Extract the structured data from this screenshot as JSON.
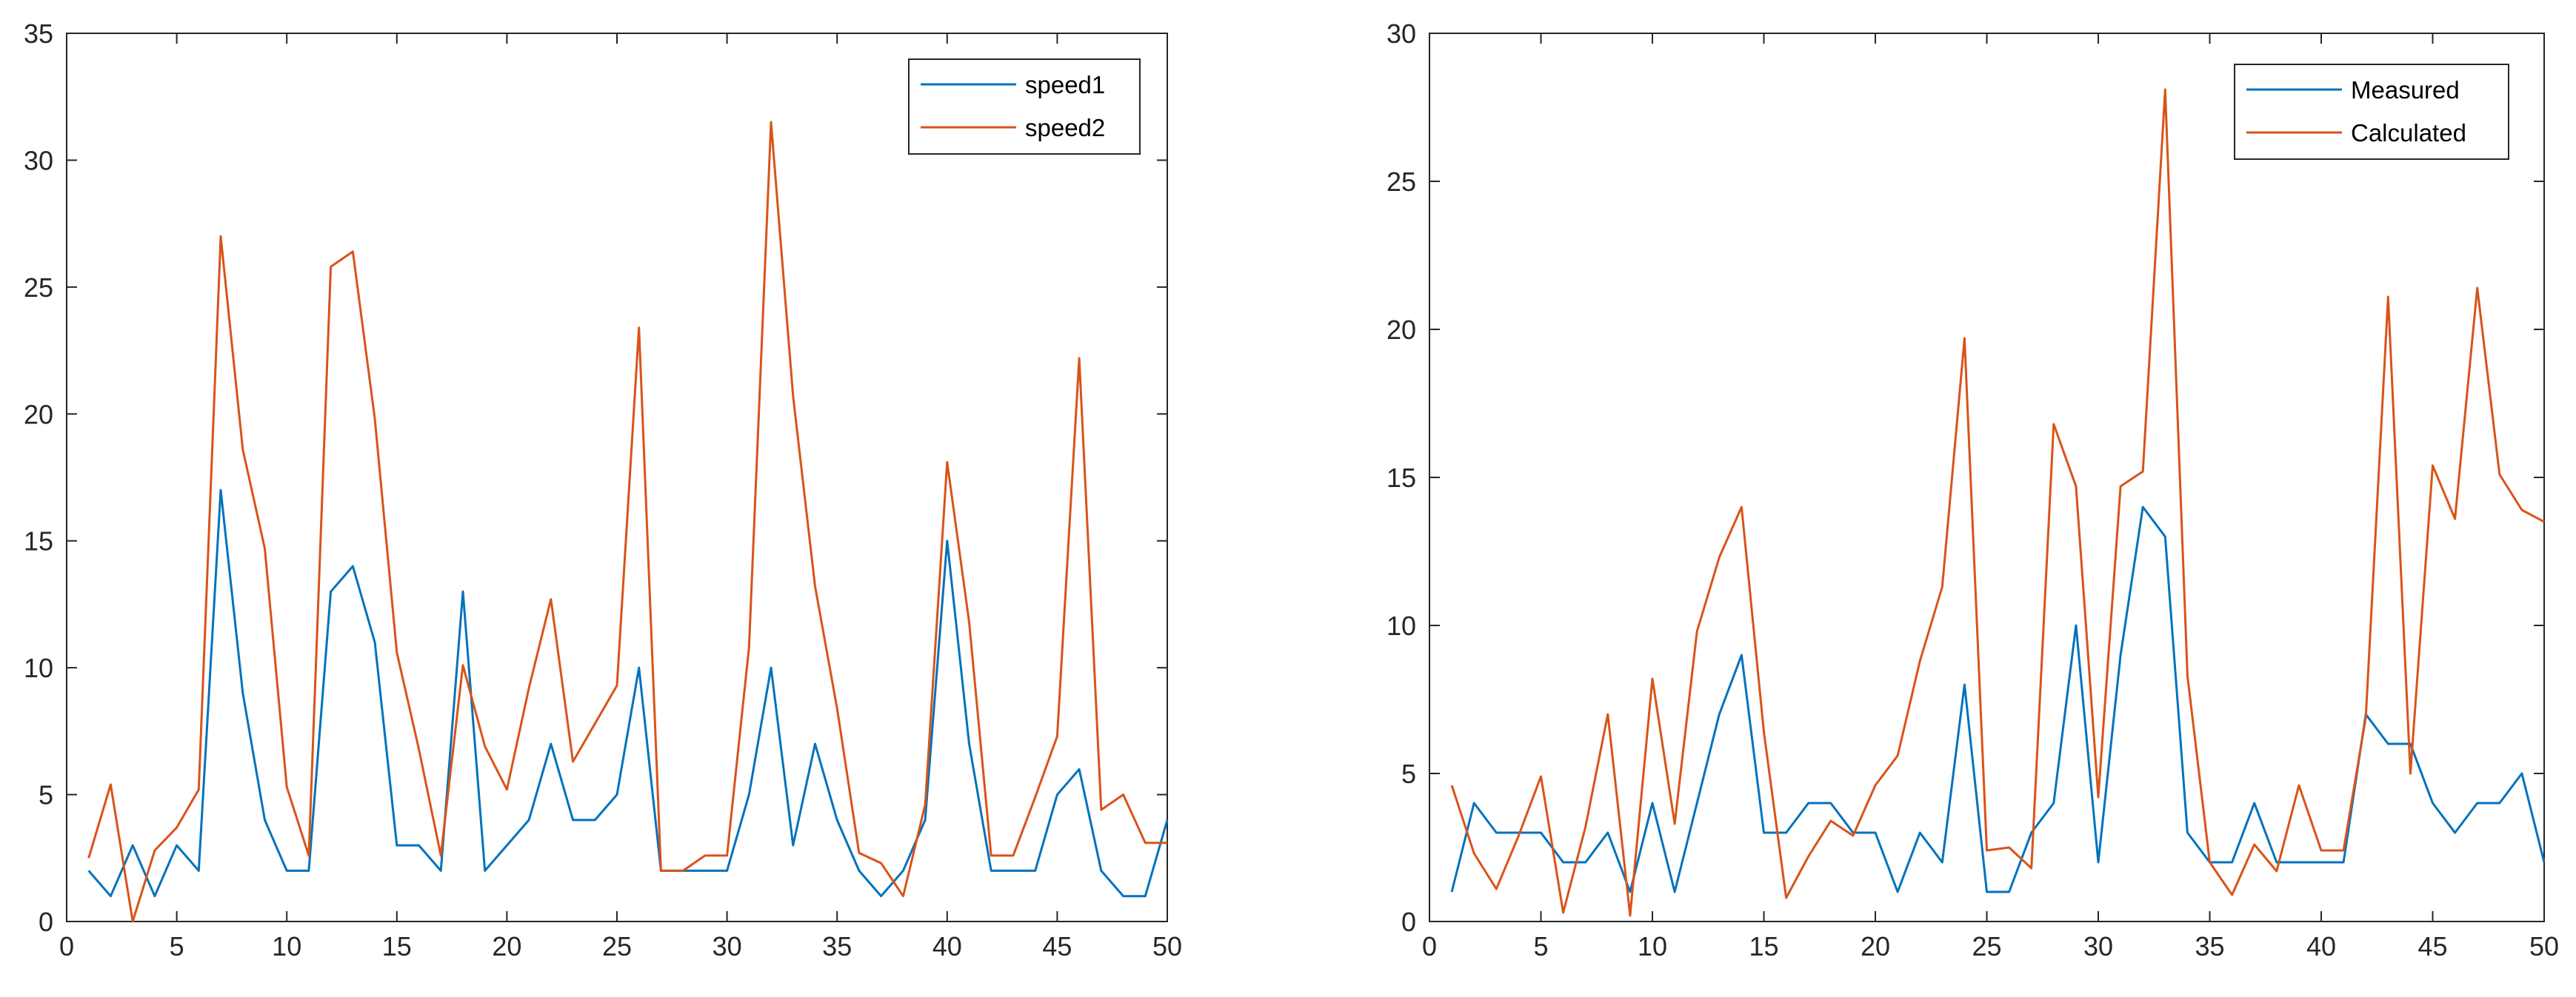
{
  "chart_data": [
    {
      "type": "line",
      "xlim": [
        0,
        50
      ],
      "ylim": [
        0,
        35
      ],
      "xticks": [
        "0",
        "5",
        "10",
        "15",
        "20",
        "25",
        "30",
        "35",
        "40",
        "45",
        "50"
      ],
      "yticks": [
        "0",
        "5",
        "10",
        "15",
        "20",
        "25",
        "30",
        "35"
      ],
      "grid": false,
      "legend_position": "top-right",
      "x": [
        1,
        2,
        3,
        4,
        5,
        6,
        7,
        8,
        9,
        10,
        11,
        12,
        13,
        14,
        15,
        16,
        17,
        18,
        19,
        20,
        21,
        22,
        23,
        24,
        25,
        26,
        27,
        28,
        29,
        30,
        31,
        32,
        33,
        34,
        35,
        36,
        37,
        38,
        39,
        40,
        41,
        42,
        43,
        44,
        45,
        46,
        47,
        48,
        49,
        50
      ],
      "series": [
        {
          "name": "speed1",
          "color": "#0072BD",
          "values": [
            2,
            1,
            3,
            1,
            3,
            2,
            17,
            9,
            4,
            2,
            2,
            13,
            14,
            11,
            3,
            3,
            2,
            13,
            2,
            3,
            4,
            7,
            4,
            4,
            5,
            10,
            2,
            2,
            2,
            2,
            5,
            10,
            3,
            7,
            4,
            2,
            1,
            2,
            4,
            15,
            7,
            2,
            2,
            2,
            5,
            6,
            2,
            1,
            1,
            4
          ]
        },
        {
          "name": "speed2",
          "color": "#D95319",
          "values": [
            2.5,
            5.4,
            0,
            2.8,
            3.7,
            5.2,
            27,
            18.6,
            14.7,
            5.3,
            2.6,
            25.8,
            26.4,
            19.8,
            10.6,
            6.8,
            2.6,
            10.1,
            6.9,
            5.2,
            9.2,
            12.7,
            6.3,
            7.8,
            9.3,
            23.4,
            2,
            2,
            2.6,
            2.6,
            10.8,
            31.5,
            20.7,
            13.2,
            8.4,
            2.7,
            2.3,
            1,
            4.6,
            18.1,
            11.8,
            2.6,
            2.6,
            4.9,
            7.3,
            22.2,
            4.4,
            5,
            3.1,
            3.1
          ]
        }
      ]
    },
    {
      "type": "line",
      "xlim": [
        0,
        50
      ],
      "ylim": [
        0,
        30
      ],
      "xticks": [
        "0",
        "5",
        "10",
        "15",
        "20",
        "25",
        "30",
        "35",
        "40",
        "45",
        "50"
      ],
      "yticks": [
        "0",
        "5",
        "10",
        "15",
        "20",
        "25",
        "30"
      ],
      "grid": false,
      "legend_position": "top-right",
      "x": [
        1,
        2,
        3,
        4,
        5,
        6,
        7,
        8,
        9,
        10,
        11,
        12,
        13,
        14,
        15,
        16,
        17,
        18,
        19,
        20,
        21,
        22,
        23,
        24,
        25,
        26,
        27,
        28,
        29,
        30,
        31,
        32,
        33,
        34,
        35,
        36,
        37,
        38,
        39,
        40,
        41,
        42,
        43,
        44,
        45,
        46,
        47,
        48,
        49,
        50
      ],
      "series": [
        {
          "name": "Measured",
          "color": "#0072BD",
          "values": [
            1,
            4,
            3,
            3,
            3,
            2,
            2,
            3,
            1,
            4,
            1,
            4,
            7,
            9,
            3,
            3,
            4,
            4,
            3,
            3,
            1,
            3,
            2,
            8,
            1,
            1,
            3,
            4,
            10,
            2,
            9,
            14,
            13,
            3,
            2,
            2,
            4,
            2,
            2,
            2,
            2,
            7,
            6,
            6,
            4,
            3,
            4,
            4,
            5,
            2
          ]
        },
        {
          "name": "Calculated",
          "color": "#D95319",
          "values": [
            4.6,
            2.3,
            1.1,
            2.9,
            4.9,
            0.3,
            3.2,
            7,
            0.2,
            8.2,
            3.3,
            9.8,
            12.3,
            14,
            6.4,
            0.8,
            2.2,
            3.4,
            2.9,
            4.6,
            5.6,
            8.8,
            11.3,
            19.7,
            2.4,
            2.5,
            1.8,
            16.8,
            14.7,
            4.2,
            14.7,
            15.2,
            28.1,
            8.3,
            2,
            0.9,
            2.6,
            1.7,
            4.6,
            2.4,
            2.4,
            6.9,
            21.1,
            5,
            15.4,
            13.6,
            21.4,
            15.1,
            13.9,
            13.5
          ]
        }
      ]
    }
  ]
}
